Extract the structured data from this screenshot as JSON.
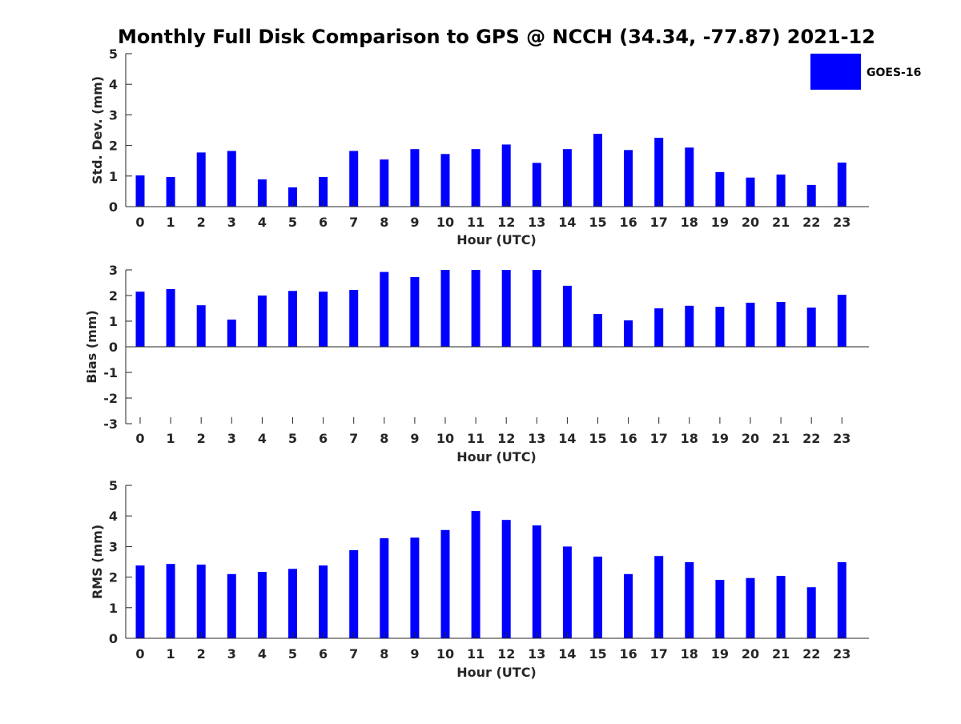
{
  "title": "Monthly Full Disk Comparison to GPS @ NCCH (34.34, -77.87) 2021-12",
  "legend": {
    "label": "GOES-16",
    "color": "#0000ff",
    "placement": "top-right"
  },
  "chart_data": [
    {
      "type": "bar",
      "categories": [
        "0",
        "1",
        "2",
        "3",
        "4",
        "5",
        "6",
        "7",
        "8",
        "9",
        "10",
        "11",
        "12",
        "13",
        "14",
        "15",
        "16",
        "17",
        "18",
        "19",
        "20",
        "21",
        "22",
        "23"
      ],
      "series": [
        {
          "name": "GOES-16",
          "values": [
            1.02,
            0.97,
            1.77,
            1.82,
            0.89,
            0.63,
            0.97,
            1.82,
            1.54,
            1.88,
            1.72,
            1.88,
            2.03,
            1.43,
            1.88,
            2.38,
            1.85,
            2.25,
            1.93,
            1.13,
            0.95,
            1.05,
            0.71,
            1.44
          ]
        }
      ],
      "xlabel": "Hour (UTC)",
      "ylabel": "Std. Dev. (mm)",
      "ylim": [
        0,
        5
      ],
      "yticks": [
        "0",
        "1",
        "2",
        "3",
        "4",
        "5"
      ],
      "color": "#0000ff",
      "grid": false
    },
    {
      "type": "bar",
      "categories": [
        "0",
        "1",
        "2",
        "3",
        "4",
        "5",
        "6",
        "7",
        "8",
        "9",
        "10",
        "11",
        "12",
        "13",
        "14",
        "15",
        "16",
        "17",
        "18",
        "19",
        "20",
        "21",
        "22",
        "23"
      ],
      "series": [
        {
          "name": "GOES-16",
          "values": [
            2.15,
            2.25,
            1.62,
            1.06,
            2.0,
            2.18,
            2.15,
            2.22,
            2.92,
            2.72,
            3.0,
            3.0,
            3.0,
            3.0,
            2.38,
            1.28,
            1.03,
            1.5,
            1.6,
            1.56,
            1.72,
            1.75,
            1.53,
            2.03
          ]
        }
      ],
      "xlabel": "Hour (UTC)",
      "ylabel": "Bias (mm)",
      "ylim": [
        -3,
        3
      ],
      "yticks": [
        "-3",
        "-2",
        "-1",
        "0",
        "1",
        "2",
        "3"
      ],
      "color": "#0000ff",
      "grid": false
    },
    {
      "type": "bar",
      "categories": [
        "0",
        "1",
        "2",
        "3",
        "4",
        "5",
        "6",
        "7",
        "8",
        "9",
        "10",
        "11",
        "12",
        "13",
        "14",
        "15",
        "16",
        "17",
        "18",
        "19",
        "20",
        "21",
        "22",
        "23"
      ],
      "series": [
        {
          "name": "GOES-16",
          "values": [
            2.38,
            2.43,
            2.41,
            2.1,
            2.17,
            2.27,
            2.38,
            2.88,
            3.27,
            3.29,
            3.54,
            4.16,
            3.87,
            3.69,
            3.0,
            2.67,
            2.1,
            2.69,
            2.49,
            1.91,
            1.97,
            2.04,
            1.67,
            2.49
          ]
        }
      ],
      "xlabel": "Hour (UTC)",
      "ylabel": "RMS (mm)",
      "ylim": [
        0,
        5
      ],
      "yticks": [
        "0",
        "1",
        "2",
        "3",
        "4",
        "5"
      ],
      "color": "#0000ff",
      "grid": false
    }
  ]
}
